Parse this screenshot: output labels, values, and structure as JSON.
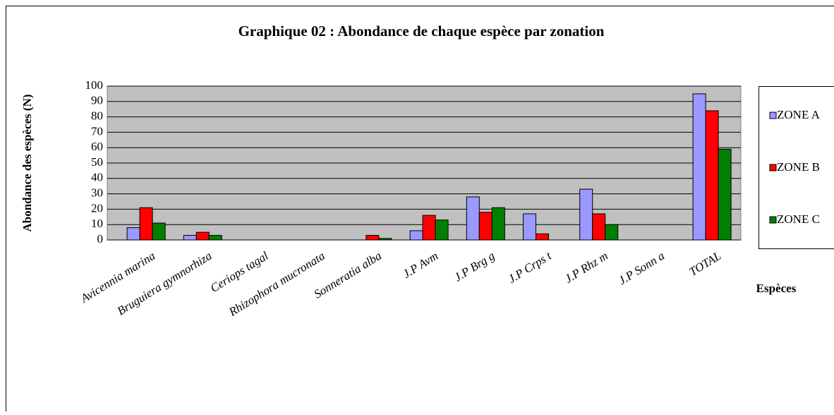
{
  "chart_data": {
    "type": "bar",
    "title": "Graphique 02 : Abondance de chaque espèce par zonation",
    "ylabel": "Abondance des espèces (N)",
    "xlabel": "Espèces",
    "categories": [
      "Avicennia marina",
      "Bruguiera gymnorhiza",
      "Ceriops tagal",
      "Rhizophora mucronata",
      "Sonneratia alba",
      "J.P Avm",
      "J.P Brg g",
      "J.P Crps t",
      "J.P Rhz m",
      "J.P Sonn a",
      "TOTAL"
    ],
    "series": [
      {
        "name": "ZONE A",
        "color": "#9999ff",
        "values": [
          8,
          3,
          0,
          0,
          0,
          6,
          28,
          17,
          33,
          0,
          95
        ]
      },
      {
        "name": "ZONE B",
        "color": "#ff0000",
        "values": [
          21,
          5,
          0,
          0,
          3,
          16,
          18,
          4,
          17,
          0,
          84
        ]
      },
      {
        "name": "ZONE C",
        "color": "#008000",
        "values": [
          11,
          3,
          0,
          0,
          1,
          13,
          21,
          0,
          10,
          0,
          59
        ]
      }
    ],
    "ylim": [
      0,
      100
    ],
    "yticks": [
      0,
      10,
      20,
      30,
      40,
      50,
      60,
      70,
      80,
      90,
      100
    ],
    "grid": true,
    "legend": "right"
  }
}
